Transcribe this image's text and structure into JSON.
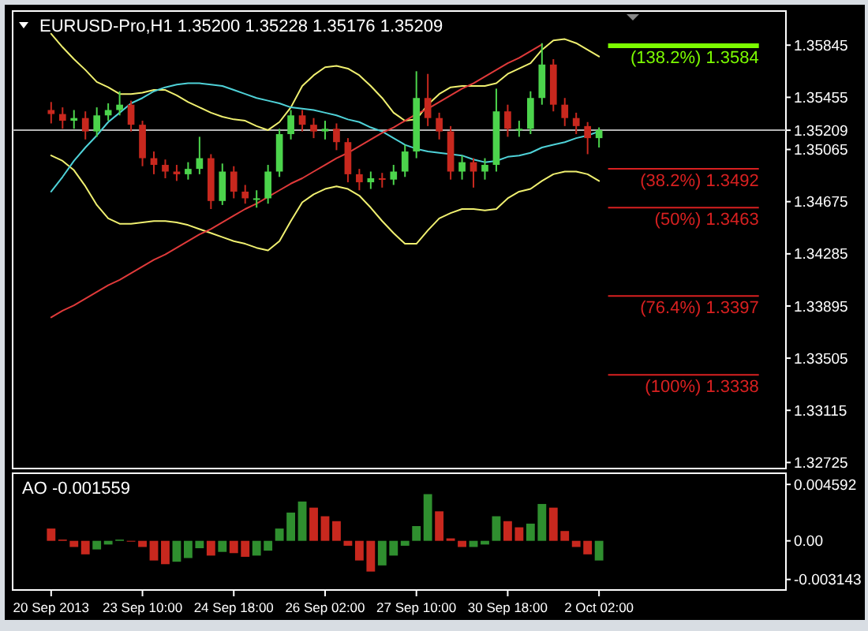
{
  "chart_data": [
    {
      "type": "candlestick",
      "title": "EURUSD-Pro,H1  1.35200 1.35228 1.35176 1.35209",
      "tick_labels": "y",
      "categories": [
        null,
        null,
        null,
        null,
        null,
        null,
        null,
        null,
        null,
        null,
        null,
        null,
        null,
        null,
        null,
        null,
        null,
        null,
        null,
        null,
        null,
        null,
        null,
        null,
        null,
        null,
        null,
        null,
        null,
        null,
        null,
        null,
        null,
        null,
        null,
        null,
        null,
        null,
        null,
        null,
        null,
        null,
        null,
        null,
        null,
        null,
        null,
        null,
        null,
        null,
        null,
        null,
        null,
        null,
        null,
        null,
        null,
        null,
        null,
        null,
        null,
        null
      ],
      "ohlc": [
        [
          1.3536,
          1.3542,
          1.3526,
          1.3533
        ],
        [
          1.3533,
          1.3538,
          1.3522,
          1.3528
        ],
        [
          1.3528,
          1.3536,
          1.3522,
          1.353
        ],
        [
          1.353,
          1.3535,
          1.3514,
          1.352
        ],
        [
          1.352,
          1.3538,
          1.3516,
          1.3532
        ],
        [
          1.3532,
          1.3541,
          1.3528,
          1.3536
        ],
        [
          1.3536,
          1.355,
          1.3532,
          1.354
        ],
        [
          1.354,
          1.3543,
          1.352,
          1.3525
        ],
        [
          1.3525,
          1.3528,
          1.3494,
          1.35
        ],
        [
          1.35,
          1.3505,
          1.3488,
          1.3495
        ],
        [
          1.3495,
          1.3499,
          1.3485,
          1.349
        ],
        [
          1.349,
          1.3495,
          1.3483,
          1.3488
        ],
        [
          1.3488,
          1.3497,
          1.3484,
          1.3492
        ],
        [
          1.3492,
          1.3516,
          1.3488,
          1.35
        ],
        [
          1.35,
          1.3503,
          1.3462,
          1.3468
        ],
        [
          1.3468,
          1.3496,
          1.3465,
          1.349
        ],
        [
          1.349,
          1.3494,
          1.347,
          1.3475
        ],
        [
          1.3475,
          1.348,
          1.3466,
          1.347
        ],
        [
          1.347,
          1.3476,
          1.3463,
          1.347
        ],
        [
          1.347,
          1.3495,
          1.3466,
          1.349
        ],
        [
          1.349,
          1.3522,
          1.3486,
          1.3518
        ],
        [
          1.3518,
          1.3536,
          1.3514,
          1.3532
        ],
        [
          1.3532,
          1.3536,
          1.352,
          1.3525
        ],
        [
          1.3525,
          1.353,
          1.3515,
          1.352
        ],
        [
          1.352,
          1.3528,
          1.3514,
          1.3522
        ],
        [
          1.3522,
          1.3526,
          1.3506,
          1.3512
        ],
        [
          1.3512,
          1.3515,
          1.3482,
          1.3488
        ],
        [
          1.3488,
          1.3492,
          1.3476,
          1.3482
        ],
        [
          1.3482,
          1.349,
          1.3477,
          1.3485
        ],
        [
          1.3485,
          1.3489,
          1.3478,
          1.3484
        ],
        [
          1.3484,
          1.3495,
          1.348,
          1.349
        ],
        [
          1.349,
          1.351,
          1.3486,
          1.3505
        ],
        [
          1.3505,
          1.3565,
          1.35,
          1.3545
        ],
        [
          1.3545,
          1.3563,
          1.3524,
          1.353
        ],
        [
          1.353,
          1.3534,
          1.3514,
          1.352
        ],
        [
          1.352,
          1.3524,
          1.3484,
          1.349
        ],
        [
          1.349,
          1.3502,
          1.3484,
          1.3497
        ],
        [
          1.3497,
          1.35,
          1.3478,
          1.349
        ],
        [
          1.349,
          1.35,
          1.3484,
          1.3495
        ],
        [
          1.3495,
          1.3552,
          1.349,
          1.3535
        ],
        [
          1.3535,
          1.354,
          1.3516,
          1.3522
        ],
        [
          1.3522,
          1.3528,
          1.3516,
          1.3522
        ],
        [
          1.3522,
          1.355,
          1.3518,
          1.3545
        ],
        [
          1.3545,
          1.3586,
          1.354,
          1.357
        ],
        [
          1.357,
          1.3574,
          1.3535,
          1.354
        ],
        [
          1.354,
          1.3545,
          1.3524,
          1.353
        ],
        [
          1.353,
          1.3534,
          1.3518,
          1.3524
        ],
        [
          1.3524,
          1.3527,
          1.3503,
          1.3515
        ],
        [
          1.3515,
          1.3523,
          1.3508,
          1.3521
        ],
        null,
        null,
        null,
        null,
        null,
        null,
        null,
        null,
        null,
        null,
        null,
        null,
        null
      ],
      "colors": [
        "#c8281e",
        "#c8281e",
        "#4cd44c",
        "#c8281e",
        "#4cd44c",
        "#4cd44c",
        "#4cd44c",
        "#c8281e",
        "#c8281e",
        "#c8281e",
        "#c8281e",
        "#c8281e",
        "#4cd44c",
        "#4cd44c",
        "#c8281e",
        "#4cd44c",
        "#c8281e",
        "#c8281e",
        "#4cd44c",
        "#4cd44c",
        "#4cd44c",
        "#4cd44c",
        "#c8281e",
        "#c8281e",
        "#4cd44c",
        "#c8281e",
        "#c8281e",
        "#c8281e",
        "#4cd44c",
        "#c8281e",
        "#4cd44c",
        "#4cd44c",
        "#4cd44c",
        "#c8281e",
        "#c8281e",
        "#c8281e",
        "#4cd44c",
        "#c8281e",
        "#4cd44c",
        "#4cd44c",
        "#c8281e",
        "#4cd44c",
        "#4cd44c",
        "#4cd44c",
        "#c8281e",
        "#c8281e",
        "#c8281e",
        "#c8281e",
        "#4cd44c",
        null,
        null,
        null,
        null,
        null,
        null,
        null,
        null,
        null,
        null,
        null,
        null,
        null
      ],
      "series": [
        {
          "type": "line",
          "color": "#f0f070",
          "values": [
            1.3593,
            1.3583,
            1.3574,
            1.3566,
            1.3557,
            1.3553,
            1.3548,
            1.3548,
            1.3549,
            1.3551,
            1.3551,
            1.3547,
            1.3542,
            1.3538,
            1.3534,
            1.3531,
            1.3529,
            1.3528,
            1.3524,
            1.3521,
            1.3527,
            1.3538,
            1.3554,
            1.3562,
            1.3568,
            1.3569,
            1.3567,
            1.3562,
            1.3554,
            1.3545,
            1.3534,
            1.3528,
            1.3529,
            1.354,
            1.3548,
            1.3553,
            1.3554,
            1.3554,
            1.3554,
            1.3556,
            1.3563,
            1.3567,
            1.3571,
            1.3581,
            1.3588,
            1.3589,
            1.3586,
            1.3581,
            1.3576,
            null,
            null,
            null,
            null,
            null,
            null,
            null,
            null,
            null,
            null,
            null,
            null,
            null
          ]
        },
        {
          "type": "line",
          "color": "#f0f070",
          "values": [
            1.3502,
            1.3498,
            1.3491,
            1.3479,
            1.3465,
            1.3455,
            1.3451,
            1.3451,
            1.3452,
            1.3453,
            1.3453,
            1.3452,
            1.345,
            1.3447,
            1.3444,
            1.3441,
            1.3438,
            1.3436,
            1.3433,
            1.3431,
            1.3438,
            1.3453,
            1.3467,
            1.3473,
            1.3477,
            1.3479,
            1.3477,
            1.3472,
            1.3463,
            1.3453,
            1.3444,
            1.3436,
            1.3436,
            1.3446,
            1.3455,
            1.3459,
            1.3462,
            1.3462,
            1.3461,
            1.3462,
            1.347,
            1.3475,
            1.3477,
            1.3483,
            1.3488,
            1.349,
            1.349,
            1.3488,
            1.3483,
            null,
            null,
            null,
            null,
            null,
            null,
            null,
            null,
            null,
            null,
            null,
            null,
            null
          ]
        },
        {
          "type": "line",
          "color": "#4fd2d8",
          "values": [
            1.3475,
            1.3486,
            1.3498,
            1.3508,
            1.3517,
            1.3527,
            1.3534,
            1.3541,
            1.3545,
            1.355,
            1.3553,
            1.3555,
            1.3556,
            1.3556,
            1.3555,
            1.3554,
            1.3551,
            1.3548,
            1.3545,
            1.3543,
            1.3541,
            1.3538,
            1.3537,
            1.3536,
            1.3534,
            1.3532,
            1.3529,
            1.3527,
            1.3523,
            1.352,
            1.3515,
            1.351,
            1.3507,
            1.3505,
            1.3504,
            1.3503,
            1.3502,
            1.3499,
            1.3497,
            1.3498,
            1.3501,
            1.3502,
            1.3504,
            1.3508,
            1.351,
            1.3512,
            1.3515,
            1.3517,
            1.352,
            null,
            null,
            null,
            null,
            null,
            null,
            null,
            null,
            null,
            null,
            null,
            null,
            null
          ]
        },
        {
          "type": "line",
          "color": "#e03a3a",
          "values": [
            1.3381,
            1.3386,
            1.339,
            1.3395,
            1.34,
            1.3405,
            1.3409,
            1.3414,
            1.3419,
            1.3424,
            1.3428,
            1.3433,
            1.3438,
            1.3443,
            1.3447,
            1.3452,
            1.3457,
            1.3462,
            1.3466,
            1.3471,
            1.3476,
            1.3481,
            1.3485,
            1.349,
            1.3495,
            1.35,
            1.3504,
            1.3509,
            1.3514,
            1.3519,
            1.3523,
            1.3528,
            1.3533,
            1.3537,
            1.3542,
            1.3547,
            1.3552,
            1.3556,
            1.3561,
            1.3566,
            1.3571,
            1.3575,
            1.358,
            1.3585,
            null,
            null,
            null,
            null,
            null,
            null,
            null,
            null,
            null,
            null,
            null,
            null,
            null,
            null,
            null,
            null,
            null,
            null
          ]
        }
      ],
      "ylim": [
        1.3268,
        1.361
      ],
      "yticks": [
        1.35845,
        1.35455,
        {
          "value": 1.35209,
          "label": "1.35209"
        },
        1.35065,
        1.34675,
        1.34285,
        1.33895,
        1.33505,
        1.33115,
        1.32725
      ],
      "ref_lines": [
        {
          "axis": "y",
          "value": 1.35209,
          "color": "#b4b4b4"
        },
        {
          "axis": "y",
          "value": 1.3584,
          "label": "(138.2%) 1.3584",
          "color": "#7cfc00"
        },
        {
          "axis": "y",
          "value": 1.3492,
          "label": "(38.2%) 1.3492",
          "color": "#d82020"
        },
        {
          "axis": "y",
          "value": 1.3463,
          "label": "(50%) 1.3463",
          "color": "#d82020"
        },
        {
          "axis": "y",
          "value": 1.3397,
          "label": "(76.4%) 1.3397",
          "color": "#d82020"
        },
        {
          "axis": "y",
          "value": 1.3338,
          "label": "(100%) 1.3338",
          "color": "#d82020"
        }
      ]
    },
    {
      "type": "bar",
      "title": "AO -0.001559",
      "categories": [
        "20 Sep 2013",
        null,
        null,
        null,
        null,
        null,
        null,
        null,
        "23 Sep 10:00",
        null,
        null,
        null,
        null,
        null,
        null,
        null,
        "24 Sep 18:00",
        null,
        null,
        null,
        null,
        null,
        null,
        null,
        "26 Sep 02:00",
        null,
        null,
        null,
        null,
        null,
        null,
        null,
        "27 Sep 10:00",
        null,
        null,
        null,
        null,
        null,
        null,
        null,
        "30 Sep 18:00",
        null,
        null,
        null,
        null,
        null,
        null,
        null,
        "2 Oct 02:00",
        null,
        null,
        null,
        null,
        null,
        null,
        null,
        null,
        null,
        null,
        null,
        null,
        null
      ],
      "values": [
        0.001,
        0.0001,
        -0.0005,
        -0.0011,
        -0.0007,
        -0.0003,
        0.0001,
        0.0,
        -0.0005,
        -0.0016,
        -0.0019,
        -0.0017,
        -0.0014,
        -0.0006,
        -0.0012,
        -0.0009,
        -0.001,
        -0.0013,
        -0.0012,
        -0.0008,
        0.001,
        0.0023,
        0.0032,
        0.0027,
        0.002,
        0.0016,
        -0.0004,
        -0.0016,
        -0.0025,
        -0.002,
        -0.0012,
        -0.0004,
        0.0012,
        0.0038,
        0.0024,
        0.0002,
        -0.0005,
        -0.0005,
        -0.0003,
        0.002,
        0.0016,
        0.0011,
        0.0014,
        0.003,
        0.0027,
        0.0008,
        -0.0005,
        -0.0011,
        -0.0016,
        null,
        null,
        null,
        null,
        null,
        null,
        null,
        null,
        null,
        null,
        null,
        null,
        null
      ],
      "colors": [
        "#c8281e",
        "#c8281e",
        "#c8281e",
        "#c8281e",
        "#2f8f2f",
        "#2f8f2f",
        "#2f8f2f",
        "#c8281e",
        "#c8281e",
        "#c8281e",
        "#c8281e",
        "#2f8f2f",
        "#2f8f2f",
        "#2f8f2f",
        "#c8281e",
        "#2f8f2f",
        "#c8281e",
        "#c8281e",
        "#2f8f2f",
        "#2f8f2f",
        "#2f8f2f",
        "#2f8f2f",
        "#2f8f2f",
        "#c8281e",
        "#c8281e",
        "#c8281e",
        "#c8281e",
        "#c8281e",
        "#c8281e",
        "#2f8f2f",
        "#2f8f2f",
        "#2f8f2f",
        "#2f8f2f",
        "#2f8f2f",
        "#c8281e",
        "#c8281e",
        "#c8281e",
        "#2f8f2f",
        "#2f8f2f",
        "#2f8f2f",
        "#c8281e",
        "#c8281e",
        "#2f8f2f",
        "#2f8f2f",
        "#c8281e",
        "#c8281e",
        "#c8281e",
        "#c8281e",
        "#2f8f2f",
        null,
        null,
        null,
        null,
        null,
        null,
        null,
        null,
        null,
        null,
        null,
        null,
        null
      ],
      "ylim": [
        -0.004,
        0.0055
      ],
      "yticks": [
        0.004592,
        {
          "value": 0,
          "label": "0.00"
        },
        -0.003143
      ]
    }
  ]
}
